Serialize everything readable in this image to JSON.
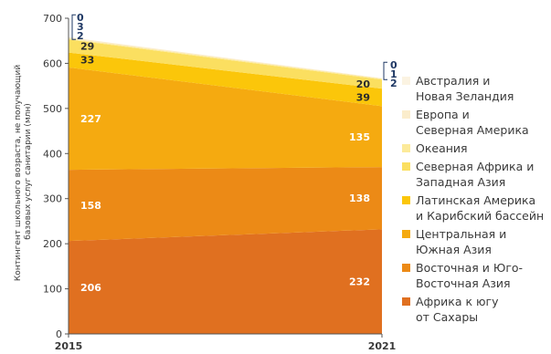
{
  "chart_data": {
    "type": "area",
    "x": [
      "2015",
      "2021"
    ],
    "ylim": [
      0,
      700
    ],
    "yticks": [
      0,
      100,
      200,
      300,
      400,
      500,
      600,
      700
    ],
    "ylabel": "Контингент школьного возраста, не получающий базовых услуг санитарии (млн)",
    "ylabel_lines": [
      "Контингент школьного возраста, не получающий",
      "базовых услуг санитарии (млн)"
    ],
    "grid": false,
    "legend_position": "right",
    "series": [
      {
        "name": "Африка к югу от Сахары",
        "legend_lines": [
          "Африка к югу",
          "от Сахары"
        ],
        "values": [
          206,
          232
        ],
        "color": "#e07020"
      },
      {
        "name": "Восточная и Юго-Восточная Азия",
        "legend_lines": [
          "Восточная и Юго-",
          "Восточная Азия"
        ],
        "values": [
          158,
          138
        ],
        "color": "#ec8a16"
      },
      {
        "name": "Центральная и Южная Азия",
        "legend_lines": [
          "Центральная и",
          "Южная Азия"
        ],
        "values": [
          227,
          135
        ],
        "color": "#f5aa10"
      },
      {
        "name": "Латинская Америка и Карибский бассейн",
        "legend_lines": [
          "Латинская Америка",
          "и Карибский бассейн"
        ],
        "values": [
          33,
          39
        ],
        "color": "#fbc60a"
      },
      {
        "name": "Северная Африка и Западная Азия",
        "legend_lines": [
          "Северная Африка и",
          "Западная Азия"
        ],
        "values": [
          29,
          20
        ],
        "color": "#fbdf60"
      },
      {
        "name": "Океания",
        "legend_lines": [
          "Океания"
        ],
        "values": [
          2,
          2
        ],
        "color": "#fcea9a"
      },
      {
        "name": "Европа и Северная Америка",
        "legend_lines": [
          "Европа и",
          "Северная Америка"
        ],
        "values": [
          3,
          1
        ],
        "color": "#fbedcc"
      },
      {
        "name": "Австралия и Новая Зеландия",
        "legend_lines": [
          "Австралия и",
          "Новая Зеландия"
        ],
        "values": [
          0,
          0
        ],
        "color": "#fbf3e2"
      }
    ]
  }
}
